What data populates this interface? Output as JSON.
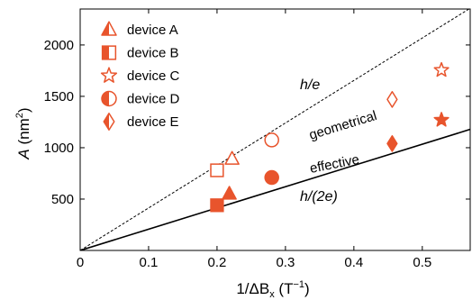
{
  "chart_data": {
    "type": "scatter",
    "xlabel": {
      "prefix": "1/ΔB",
      "sub": "x",
      "unit_open": " (T",
      "unit_sup": "−1",
      "unit_close": ")"
    },
    "ylabel": {
      "var": "A",
      "unit_open": " (nm",
      "unit_sup": "2",
      "unit_close": ")"
    },
    "xlim": [
      0,
      0.57
    ],
    "ylim": [
      0,
      2350
    ],
    "x_ticks": [
      0,
      0.1,
      0.2,
      0.3,
      0.4,
      0.5
    ],
    "x_tick_labels": [
      "0",
      "0.1",
      "0.2",
      "0.3",
      "0.4",
      "0.5"
    ],
    "y_ticks": [
      500,
      1000,
      1500,
      2000
    ],
    "y_tick_labels": [
      "500",
      "1000",
      "1500",
      "2000"
    ],
    "grid": false,
    "legend_position": "top-left",
    "accent_color": "#e8542c",
    "series": [
      {
        "name": "device A",
        "marker": "triangle",
        "effective": {
          "x": 0.218,
          "y": 550
        },
        "geometrical": {
          "x": 0.222,
          "y": 890
        }
      },
      {
        "name": "device B",
        "marker": "square",
        "effective": {
          "x": 0.2,
          "y": 440
        },
        "geometrical": {
          "x": 0.2,
          "y": 780
        }
      },
      {
        "name": "device C",
        "marker": "star",
        "effective": {
          "x": 0.528,
          "y": 1270
        },
        "geometrical": {
          "x": 0.528,
          "y": 1755
        }
      },
      {
        "name": "device D",
        "marker": "circle",
        "effective": {
          "x": 0.28,
          "y": 710
        },
        "geometrical": {
          "x": 0.28,
          "y": 1075
        }
      },
      {
        "name": "device E",
        "marker": "diamond",
        "effective": {
          "x": 0.456,
          "y": 1040
        },
        "geometrical": {
          "x": 0.456,
          "y": 1470
        }
      }
    ],
    "reference_lines": [
      {
        "name": "h/e",
        "style": "dashed",
        "slope": 4136
      },
      {
        "name": "h/(2e)",
        "style": "solid",
        "slope": 2068
      }
    ],
    "annotations": {
      "h_over_e": "h/e",
      "h_over_2e": "h/(2e)",
      "geometrical": "geometrical",
      "effective": "effective"
    }
  }
}
